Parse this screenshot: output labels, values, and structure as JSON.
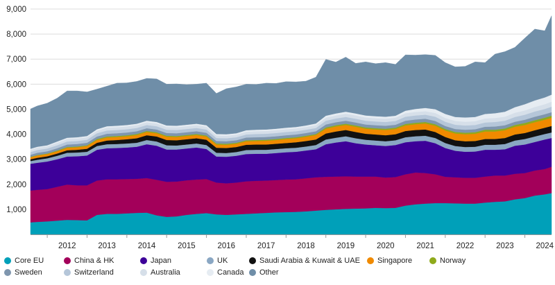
{
  "chart_data": {
    "type": "area",
    "stacked": true,
    "title": "",
    "xlabel": "",
    "ylabel": "",
    "ylim": [
      0,
      9000
    ],
    "yticks": [
      1000,
      2000,
      3000,
      4000,
      5000,
      6000,
      7000,
      8000,
      9000
    ],
    "ytick_labels": [
      "1,000",
      "2,000",
      "3,000",
      "4,000",
      "5,000",
      "6,000",
      "7,000",
      "8,000",
      "9,000"
    ],
    "xlim": [
      2011.58,
      2024.67
    ],
    "xticks": [
      2012,
      2013,
      2014,
      2015,
      2016,
      2017,
      2018,
      2019,
      2020,
      2021,
      2022,
      2023,
      2024
    ],
    "xtick_labels": [
      "2012",
      "2013",
      "2014",
      "2015",
      "2016",
      "2017",
      "2018",
      "2019",
      "2020",
      "2021",
      "2022",
      "2023",
      "2024"
    ],
    "grid": "horizontal",
    "legend_placement": "bottom",
    "x": [
      2011.58,
      2011.75,
      2012.0,
      2012.25,
      2012.5,
      2012.75,
      2013.0,
      2013.25,
      2013.5,
      2013.75,
      2014.0,
      2014.25,
      2014.5,
      2014.75,
      2015.0,
      2015.25,
      2015.5,
      2015.75,
      2016.0,
      2016.25,
      2016.5,
      2016.75,
      2017.0,
      2017.25,
      2017.5,
      2017.75,
      2018.0,
      2018.25,
      2018.5,
      2018.75,
      2019.0,
      2019.25,
      2019.5,
      2019.75,
      2020.0,
      2020.25,
      2020.5,
      2020.75,
      2021.0,
      2021.25,
      2021.5,
      2021.75,
      2022.0,
      2022.25,
      2022.5,
      2022.75,
      2023.0,
      2023.25,
      2023.5,
      2023.75,
      2024.0,
      2024.25,
      2024.5,
      2024.67
    ],
    "series": [
      {
        "name": "Core EU",
        "color": "#00a0b9",
        "values": [
          480,
          500,
          520,
          550,
          580,
          570,
          560,
          780,
          820,
          820,
          840,
          860,
          870,
          760,
          700,
          720,
          780,
          820,
          850,
          800,
          780,
          800,
          820,
          840,
          860,
          880,
          890,
          900,
          920,
          950,
          980,
          1000,
          1020,
          1030,
          1040,
          1060,
          1050,
          1060,
          1150,
          1200,
          1230,
          1250,
          1250,
          1240,
          1230,
          1230,
          1270,
          1300,
          1320,
          1400,
          1450,
          1550,
          1600,
          1650
        ]
      },
      {
        "name": "China & HK",
        "color": "#a3005a",
        "values": [
          1270,
          1280,
          1290,
          1350,
          1410,
          1390,
          1400,
          1370,
          1380,
          1380,
          1370,
          1360,
          1380,
          1420,
          1400,
          1390,
          1380,
          1370,
          1360,
          1270,
          1260,
          1270,
          1300,
          1300,
          1290,
          1290,
          1300,
          1300,
          1320,
          1330,
          1320,
          1310,
          1300,
          1280,
          1270,
          1250,
          1220,
          1230,
          1250,
          1270,
          1220,
          1150,
          1050,
          1040,
          1030,
          1030,
          1040,
          1050,
          1030,
          1020,
          1000,
          1000,
          1010,
          1050
        ]
      },
      {
        "name": "Japan",
        "color": "#3d0099",
        "values": [
          1070,
          1080,
          1100,
          1100,
          1120,
          1160,
          1190,
          1230,
          1240,
          1250,
          1260,
          1280,
          1350,
          1360,
          1290,
          1280,
          1270,
          1280,
          1200,
          1040,
          1060,
          1070,
          1090,
          1080,
          1070,
          1080,
          1090,
          1100,
          1110,
          1120,
          1300,
          1360,
          1400,
          1330,
          1280,
          1250,
          1260,
          1280,
          1280,
          1250,
          1290,
          1240,
          1150,
          1060,
          1040,
          1050,
          1070,
          1030,
          1050,
          1120,
          1140,
          1140,
          1180,
          1150
        ]
      },
      {
        "name": "UK",
        "color": "#8aa7c3",
        "values": [
          110,
          120,
          130,
          140,
          150,
          150,
          150,
          150,
          160,
          160,
          160,
          160,
          170,
          170,
          170,
          160,
          160,
          160,
          160,
          150,
          150,
          150,
          160,
          160,
          160,
          160,
          160,
          160,
          160,
          170,
          190,
          190,
          200,
          200,
          190,
          190,
          190,
          190,
          200,
          200,
          200,
          210,
          200,
          190,
          190,
          190,
          200,
          200,
          210,
          210,
          220,
          220,
          220,
          220
        ]
      },
      {
        "name": "Saudi Arabia & Kuwait & UAE",
        "color": "#111111",
        "values": [
          70,
          80,
          80,
          90,
          100,
          110,
          120,
          130,
          150,
          160,
          170,
          180,
          190,
          200,
          210,
          210,
          210,
          210,
          210,
          200,
          200,
          200,
          210,
          210,
          210,
          210,
          210,
          220,
          220,
          220,
          240,
          250,
          250,
          250,
          240,
          240,
          240,
          240,
          250,
          250,
          250,
          240,
          240,
          230,
          230,
          230,
          230,
          230,
          240,
          240,
          240,
          250,
          250,
          260
        ]
      },
      {
        "name": "Singapore",
        "color": "#f08a00",
        "values": [
          80,
          90,
          90,
          90,
          100,
          100,
          110,
          110,
          120,
          120,
          120,
          130,
          130,
          130,
          130,
          130,
          130,
          130,
          130,
          130,
          130,
          130,
          140,
          140,
          150,
          150,
          160,
          160,
          170,
          180,
          190,
          200,
          200,
          210,
          200,
          200,
          210,
          210,
          220,
          230,
          240,
          250,
          260,
          270,
          280,
          290,
          300,
          300,
          310,
          310,
          320,
          320,
          320,
          330
        ]
      },
      {
        "name": "Norway",
        "color": "#8faa1b",
        "values": [
          20,
          20,
          20,
          30,
          30,
          30,
          30,
          40,
          40,
          40,
          40,
          40,
          40,
          40,
          40,
          40,
          40,
          40,
          40,
          40,
          40,
          40,
          40,
          40,
          40,
          40,
          40,
          40,
          40,
          40,
          50,
          50,
          50,
          50,
          50,
          50,
          50,
          50,
          60,
          60,
          60,
          60,
          60,
          60,
          60,
          60,
          70,
          70,
          70,
          70,
          80,
          80,
          80,
          80
        ]
      },
      {
        "name": "Sweden",
        "color": "#7f96ae",
        "values": [
          80,
          90,
          90,
          90,
          100,
          100,
          100,
          100,
          110,
          110,
          110,
          110,
          110,
          110,
          110,
          110,
          110,
          110,
          110,
          100,
          100,
          100,
          110,
          110,
          110,
          110,
          110,
          110,
          110,
          110,
          120,
          120,
          120,
          120,
          120,
          120,
          120,
          120,
          130,
          130,
          130,
          130,
          120,
          120,
          120,
          120,
          120,
          130,
          130,
          130,
          130,
          140,
          140,
          140
        ]
      },
      {
        "name": "Switzerland",
        "color": "#b5c6d9",
        "values": [
          110,
          110,
          110,
          120,
          120,
          120,
          120,
          130,
          130,
          130,
          130,
          130,
          130,
          130,
          130,
          130,
          130,
          130,
          130,
          120,
          120,
          120,
          120,
          130,
          130,
          130,
          130,
          130,
          130,
          130,
          150,
          150,
          150,
          150,
          150,
          150,
          150,
          150,
          160,
          160,
          160,
          170,
          170,
          170,
          170,
          170,
          170,
          180,
          180,
          190,
          200,
          210,
          210,
          220
        ]
      },
      {
        "name": "Australia",
        "color": "#d6dfe9",
        "values": [
          90,
          90,
          90,
          100,
          100,
          100,
          100,
          100,
          110,
          110,
          110,
          110,
          110,
          110,
          110,
          110,
          110,
          110,
          110,
          100,
          100,
          100,
          110,
          110,
          110,
          110,
          110,
          110,
          110,
          110,
          120,
          120,
          130,
          130,
          130,
          130,
          130,
          130,
          140,
          140,
          140,
          150,
          150,
          150,
          150,
          150,
          160,
          160,
          160,
          170,
          170,
          180,
          190,
          200
        ]
      },
      {
        "name": "Canada",
        "color": "#e6ecf2",
        "values": [
          40,
          40,
          40,
          50,
          50,
          50,
          50,
          60,
          60,
          60,
          60,
          60,
          60,
          60,
          60,
          60,
          60,
          60,
          60,
          60,
          60,
          60,
          60,
          60,
          60,
          60,
          60,
          60,
          60,
          70,
          80,
          80,
          80,
          80,
          80,
          80,
          80,
          80,
          100,
          120,
          130,
          150,
          160,
          160,
          170,
          170,
          180,
          190,
          200,
          220,
          250,
          260,
          270,
          280
        ]
      },
      {
        "name": "Other",
        "color": "#6f8ea8",
        "values": [
          1590,
          1630,
          1680,
          1730,
          1870,
          1850,
          1760,
          1600,
          1600,
          1700,
          1680,
          1690,
          1690,
          1720,
          1650,
          1670,
          1600,
          1580,
          1680,
          1620,
          1820,
          1850,
          1840,
          1810,
          1850,
          1810,
          1840,
          1800,
          1770,
          1850,
          2250,
          2050,
          2180,
          2000,
          2140,
          2100,
          2160,
          2050,
          2230,
          2150,
          2130,
          2150,
          2050,
          2000,
          2040,
          2200,
          2050,
          2360,
          2400,
          2390,
          2640,
          2850,
          2660,
          3150
        ]
      }
    ],
    "legend": [
      "Core EU",
      "China & HK",
      "Japan",
      "UK",
      "Saudi Arabia & Kuwait & UAE",
      "Singapore",
      "Norway",
      "Sweden",
      "Switzerland",
      "Australia",
      "Canada",
      "Other"
    ]
  }
}
